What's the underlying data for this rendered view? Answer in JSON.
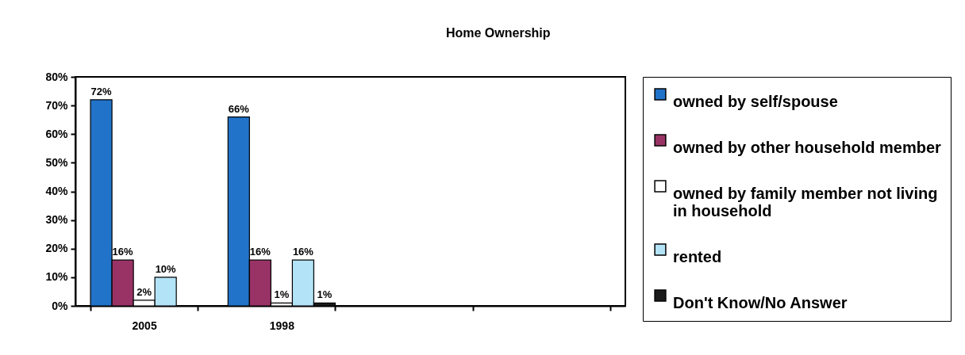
{
  "chart_data": {
    "type": "bar",
    "title": "Home Ownership",
    "categories": [
      "2005",
      "1998",
      null,
      null
    ],
    "series": [
      {
        "name": "owned by self/spouse",
        "color": "#2173c9",
        "values": [
          72,
          66,
          null,
          null
        ],
        "value_labels": [
          "72%",
          "66%",
          null,
          null
        ]
      },
      {
        "name": "owned by other household member",
        "color": "#993366",
        "values": [
          16,
          16,
          null,
          null
        ],
        "value_labels": [
          "16%",
          "16%",
          null,
          null
        ]
      },
      {
        "name": "owned by family member not living in household",
        "color": "#ffffff",
        "values": [
          2,
          1,
          null,
          null
        ],
        "value_labels": [
          "2%",
          "1%",
          null,
          null
        ]
      },
      {
        "name": "rented",
        "color": "#b3e3f7",
        "values": [
          10,
          16,
          null,
          null
        ],
        "value_labels": [
          "10%",
          "16%",
          null,
          null
        ]
      },
      {
        "name": "Don't Know/No Answer",
        "color": "#1a1a1a",
        "values": [
          null,
          1,
          null,
          null
        ],
        "value_labels": [
          null,
          "1%",
          null,
          null
        ]
      }
    ],
    "ylim": [
      0,
      80
    ],
    "yticks": [
      {
        "value": 0,
        "label": "0%"
      },
      {
        "value": 10,
        "label": "10%"
      },
      {
        "value": 20,
        "label": "20%"
      },
      {
        "value": 30,
        "label": "30%"
      },
      {
        "value": 40,
        "label": "40%"
      },
      {
        "value": 50,
        "label": "50%"
      },
      {
        "value": 60,
        "label": "60%"
      },
      {
        "value": 70,
        "label": "70%"
      },
      {
        "value": 80,
        "label": "80%"
      }
    ],
    "grid": false,
    "legend": "right"
  }
}
